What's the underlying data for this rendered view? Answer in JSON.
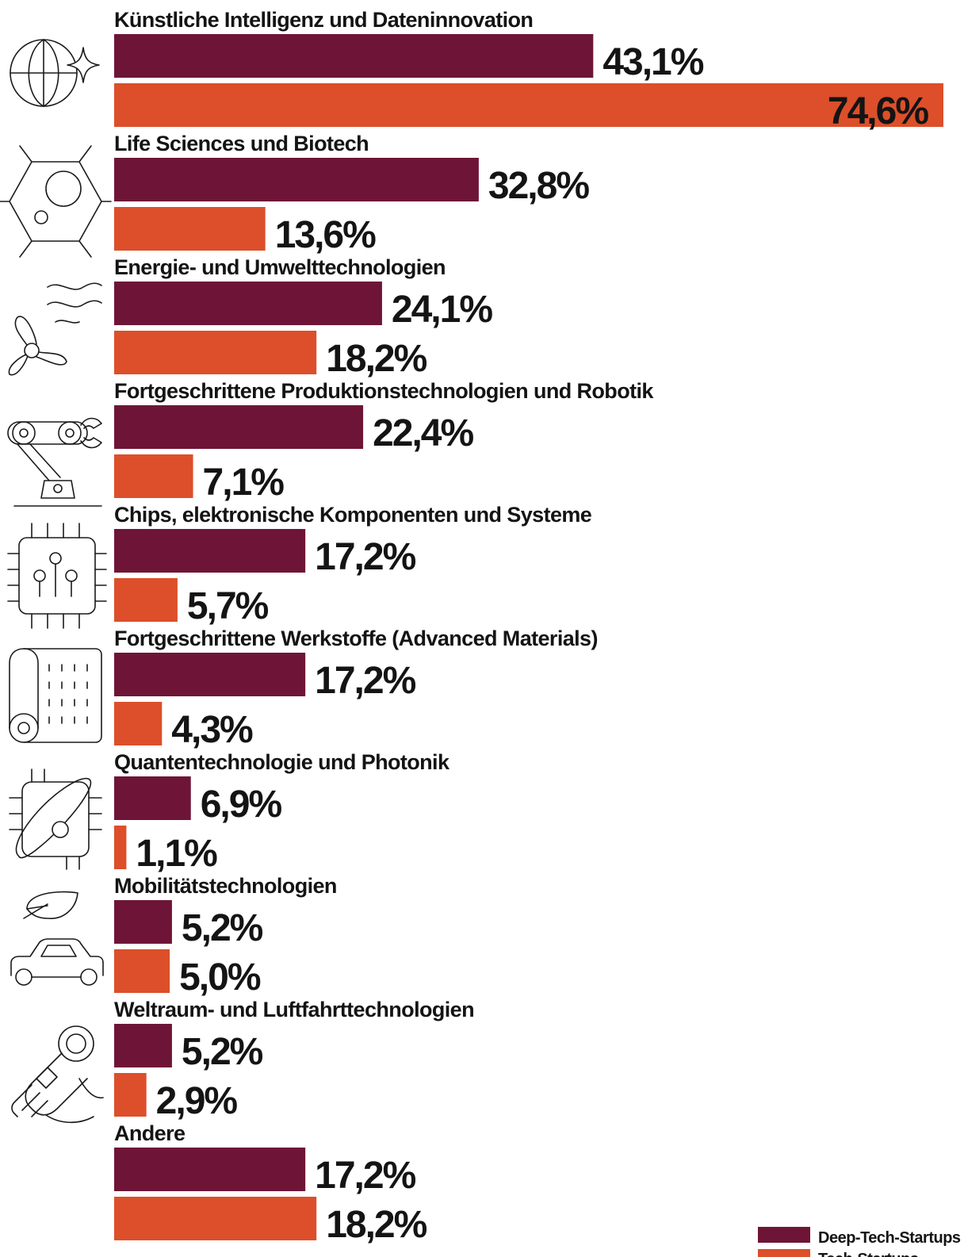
{
  "colors": {
    "deep_tech": "#6e1537",
    "tech": "#dc4f2a",
    "text": "#141414",
    "background": "#ffffff"
  },
  "legend": {
    "items": [
      {
        "label": "Deep-Tech-Startups",
        "color": "#6e1537"
      },
      {
        "label": "Tech-Startups",
        "color": "#dc4f2a"
      }
    ],
    "placement": "bottom-right"
  },
  "chart_data": {
    "type": "bar",
    "orientation": "horizontal",
    "unit": "%",
    "title": "",
    "xlabel": "",
    "ylabel": "",
    "xlim": [
      0,
      74.6
    ],
    "grid": false,
    "categories": [
      "Künstliche Intelligenz und Dateninnovation",
      "Life Sciences und Biotech",
      "Energie- und Umwelttechnologien",
      "Fortgeschrittene Produktionstechnologien und Robotik",
      "Chips, elektronische Komponenten und Systeme",
      "Fortgeschrittene Werkstoffe (Advanced Materials)",
      "Quantentechnologie und Photonik",
      "Mobilitätstechnologien",
      "Weltraum- und Luftfahrttechnologien",
      "Andere"
    ],
    "icons": [
      "globe-sparkle-icon",
      "cell-hexagon-icon",
      "wind-turbine-icon",
      "robot-arm-icon",
      "microchip-icon",
      "material-roll-icon",
      "quantum-orbit-icon",
      "eco-car-icon",
      "astronaut-icon",
      ""
    ],
    "series": [
      {
        "name": "Deep-Tech-Startups",
        "color": "#6e1537",
        "values": [
          43.1,
          32.8,
          24.1,
          22.4,
          17.2,
          17.2,
          6.9,
          5.2,
          5.2,
          17.2
        ],
        "labels": [
          "43,1%",
          "32,8%",
          "24,1%",
          "22,4%",
          "17,2%",
          "17,2%",
          "6,9%",
          "5,2%",
          "5,2%",
          "17,2%"
        ]
      },
      {
        "name": "Tech-Startups",
        "color": "#dc4f2a",
        "values": [
          74.6,
          13.6,
          18.2,
          7.1,
          5.7,
          4.3,
          1.1,
          5.0,
          2.9,
          18.2
        ],
        "labels": [
          "74,6%",
          "13,6%",
          "18,2%",
          "7,1%",
          "5,7%",
          "4,3%",
          "1,1%",
          "5,0%",
          "2,9%",
          "18,2%"
        ]
      }
    ]
  }
}
